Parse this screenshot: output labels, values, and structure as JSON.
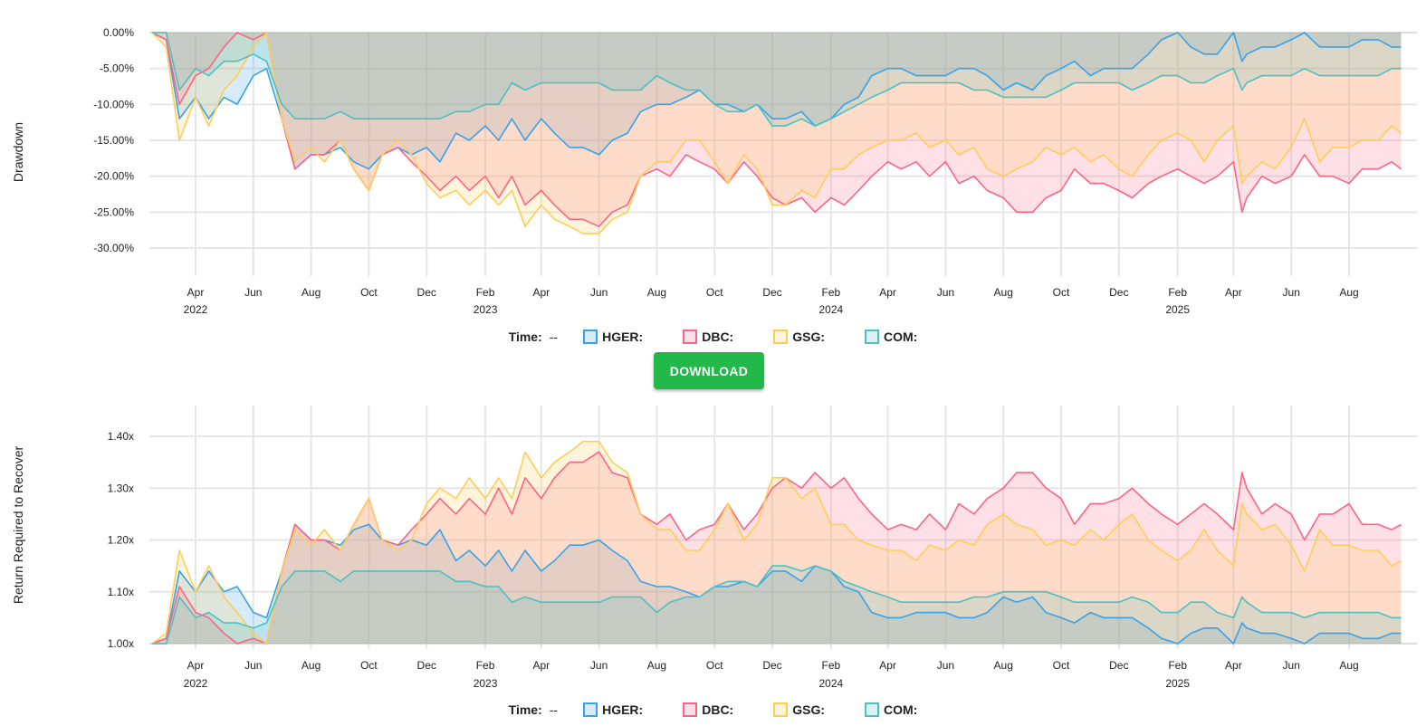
{
  "download_label": "DOWNLOAD",
  "legend": {
    "time_label": "Time:",
    "time_value": "--",
    "items": [
      {
        "label": "HGER:",
        "color": "#36a2eb"
      },
      {
        "label": "DBC:",
        "color": "#ff6384"
      },
      {
        "label": "GSG:",
        "color": "#ffcd56"
      },
      {
        "label": "COM:",
        "color": "#4bc0c0"
      }
    ]
  },
  "chart_data": [
    {
      "type": "area",
      "ylabel": "Drawdown",
      "ylim": [
        -33,
        0
      ],
      "y_ticks": [
        0,
        -5,
        -10,
        -15,
        -20,
        -25,
        -30
      ],
      "y_tick_labels": [
        "0.00%",
        "-5.00%",
        "-10.00%",
        "-15.00%",
        "-20.00%",
        "-25.00%",
        "-30.00%"
      ],
      "grid": true,
      "legend": "bottom",
      "series": [
        {
          "name": "HGER",
          "color": "#36a2eb",
          "values": [
            0,
            -1,
            -12,
            -9,
            -12,
            -9,
            -10,
            -6,
            -5,
            -12,
            -19,
            -17,
            -17,
            -16,
            -18,
            -19,
            -17,
            -16,
            -17,
            -16,
            -18,
            -14,
            -15,
            -13,
            -15,
            -12,
            -15,
            -12,
            -14,
            -16,
            -16,
            -17,
            -15,
            -14,
            -11,
            -10,
            -10,
            -9,
            -8,
            -10,
            -10,
            -11,
            -10,
            -12,
            -12,
            -11,
            -13,
            -12,
            -10,
            -9,
            -6,
            -5,
            -5,
            -6,
            -6,
            -6,
            -5,
            -5,
            -6,
            -8,
            -7,
            -8,
            -6,
            -5,
            -4,
            -6,
            -5,
            -5,
            -5,
            -3,
            -1,
            0,
            -2,
            -3,
            -3,
            0,
            -4,
            -3,
            -2,
            -2,
            -1,
            0,
            -2,
            -2,
            -2,
            -1,
            -1,
            -2,
            -2
          ]
        },
        {
          "name": "DBC",
          "color": "#ff6384",
          "values": [
            0,
            -1,
            -10,
            -6,
            -5,
            -2,
            0,
            -1,
            0,
            -12,
            -19,
            -17,
            -17,
            -15,
            -19,
            -22,
            -17,
            -16,
            -18,
            -20,
            -22,
            -20,
            -22,
            -20,
            -23,
            -20,
            -24,
            -22,
            -24,
            -26,
            -26,
            -27,
            -25,
            -24,
            -20,
            -19,
            -20,
            -17,
            -18,
            -19,
            -21,
            -18,
            -20,
            -23,
            -24,
            -23,
            -25,
            -23,
            -24,
            -22,
            -20,
            -18,
            -19,
            -18,
            -20,
            -18,
            -21,
            -20,
            -22,
            -23,
            -25,
            -25,
            -23,
            -22,
            -19,
            -21,
            -21,
            -22,
            -23,
            -21,
            -20,
            -19,
            -20,
            -21,
            -20,
            -18,
            -25,
            -23,
            -20,
            -21,
            -20,
            -17,
            -20,
            -20,
            -21,
            -19,
            -19,
            -18,
            -19
          ]
        },
        {
          "name": "GSG",
          "color": "#ffcd56",
          "values": [
            0,
            -2,
            -15,
            -9,
            -13,
            -8,
            -6,
            -2,
            0,
            -12,
            -18,
            -16,
            -18,
            -15,
            -19,
            -22,
            -17,
            -15,
            -17,
            -21,
            -23,
            -22,
            -24,
            -22,
            -24,
            -22,
            -27,
            -24,
            -26,
            -27,
            -28,
            -28,
            -26,
            -25,
            -20,
            -18,
            -18,
            -15,
            -15,
            -18,
            -21,
            -17,
            -19,
            -24,
            -24,
            -22,
            -23,
            -19,
            -19,
            -17,
            -16,
            -15,
            -15,
            -14,
            -16,
            -15,
            -17,
            -16,
            -19,
            -20,
            -19,
            -18,
            -16,
            -17,
            -16,
            -18,
            -17,
            -19,
            -20,
            -17,
            -15,
            -14,
            -15,
            -18,
            -15,
            -13,
            -21,
            -20,
            -18,
            -19,
            -16,
            -12,
            -18,
            -16,
            -16,
            -15,
            -15,
            -13,
            -14
          ]
        },
        {
          "name": "COM",
          "color": "#4bc0c0",
          "values": [
            0,
            0,
            -8,
            -5,
            -6,
            -4,
            -4,
            -3,
            -4,
            -10,
            -12,
            -12,
            -12,
            -11,
            -12,
            -12,
            -12,
            -12,
            -12,
            -12,
            -12,
            -11,
            -11,
            -10,
            -10,
            -7,
            -8,
            -7,
            -7,
            -7,
            -7,
            -7,
            -8,
            -8,
            -8,
            -6,
            -7,
            -8,
            -8,
            -10,
            -11,
            -11,
            -10,
            -13,
            -13,
            -12,
            -13,
            -12,
            -11,
            -10,
            -9,
            -8,
            -7,
            -7,
            -7,
            -7,
            -7,
            -8,
            -8,
            -9,
            -9,
            -9,
            -9,
            -8,
            -7,
            -7,
            -7,
            -7,
            -8,
            -7,
            -6,
            -6,
            -7,
            -7,
            -6,
            -5,
            -8,
            -7,
            -6,
            -6,
            -6,
            -5,
            -6,
            -6,
            -6,
            -6,
            -6,
            -5,
            -5
          ]
        }
      ]
    },
    {
      "type": "area",
      "ylabel": "Return Required to Recover",
      "ylim": [
        1.0,
        1.46
      ],
      "y_ticks": [
        1.0,
        1.1,
        1.2,
        1.3,
        1.4
      ],
      "y_tick_labels": [
        "1.00x",
        "1.10x",
        "1.20x",
        "1.30x",
        "1.40x"
      ],
      "grid": true,
      "legend": "bottom",
      "series": [
        {
          "name": "HGER",
          "color": "#36a2eb",
          "values": [
            1.0,
            1.01,
            1.14,
            1.1,
            1.14,
            1.1,
            1.11,
            1.06,
            1.05,
            1.14,
            1.23,
            1.2,
            1.2,
            1.19,
            1.22,
            1.23,
            1.2,
            1.19,
            1.2,
            1.19,
            1.22,
            1.16,
            1.18,
            1.15,
            1.18,
            1.14,
            1.18,
            1.14,
            1.16,
            1.19,
            1.19,
            1.2,
            1.18,
            1.16,
            1.12,
            1.11,
            1.11,
            1.1,
            1.09,
            1.11,
            1.11,
            1.12,
            1.11,
            1.14,
            1.14,
            1.12,
            1.15,
            1.14,
            1.11,
            1.1,
            1.06,
            1.05,
            1.05,
            1.06,
            1.06,
            1.06,
            1.05,
            1.05,
            1.06,
            1.09,
            1.08,
            1.09,
            1.06,
            1.05,
            1.04,
            1.06,
            1.05,
            1.05,
            1.05,
            1.03,
            1.01,
            1.0,
            1.02,
            1.03,
            1.03,
            1.0,
            1.04,
            1.03,
            1.02,
            1.02,
            1.01,
            1.0,
            1.02,
            1.02,
            1.02,
            1.01,
            1.01,
            1.02,
            1.02
          ]
        },
        {
          "name": "DBC",
          "color": "#ff6384",
          "values": [
            1.0,
            1.01,
            1.11,
            1.06,
            1.05,
            1.02,
            1.0,
            1.01,
            1.0,
            1.14,
            1.23,
            1.2,
            1.2,
            1.18,
            1.23,
            1.28,
            1.2,
            1.19,
            1.22,
            1.25,
            1.28,
            1.25,
            1.28,
            1.25,
            1.3,
            1.25,
            1.32,
            1.28,
            1.32,
            1.35,
            1.35,
            1.37,
            1.33,
            1.32,
            1.25,
            1.23,
            1.25,
            1.2,
            1.22,
            1.23,
            1.27,
            1.22,
            1.25,
            1.3,
            1.32,
            1.3,
            1.33,
            1.3,
            1.32,
            1.28,
            1.25,
            1.22,
            1.23,
            1.22,
            1.25,
            1.22,
            1.27,
            1.25,
            1.28,
            1.3,
            1.33,
            1.33,
            1.3,
            1.28,
            1.23,
            1.27,
            1.27,
            1.28,
            1.3,
            1.27,
            1.25,
            1.23,
            1.25,
            1.27,
            1.25,
            1.22,
            1.33,
            1.3,
            1.25,
            1.27,
            1.25,
            1.2,
            1.25,
            1.25,
            1.27,
            1.23,
            1.23,
            1.22,
            1.23
          ]
        },
        {
          "name": "GSG",
          "color": "#ffcd56",
          "values": [
            1.0,
            1.02,
            1.18,
            1.1,
            1.15,
            1.09,
            1.06,
            1.02,
            1.0,
            1.14,
            1.22,
            1.19,
            1.22,
            1.18,
            1.23,
            1.28,
            1.2,
            1.18,
            1.2,
            1.27,
            1.3,
            1.28,
            1.32,
            1.28,
            1.32,
            1.28,
            1.37,
            1.32,
            1.35,
            1.37,
            1.39,
            1.39,
            1.35,
            1.33,
            1.25,
            1.22,
            1.22,
            1.18,
            1.18,
            1.22,
            1.27,
            1.2,
            1.23,
            1.32,
            1.32,
            1.28,
            1.3,
            1.23,
            1.23,
            1.2,
            1.19,
            1.18,
            1.18,
            1.16,
            1.19,
            1.18,
            1.2,
            1.19,
            1.23,
            1.25,
            1.23,
            1.22,
            1.19,
            1.2,
            1.19,
            1.22,
            1.2,
            1.23,
            1.25,
            1.2,
            1.18,
            1.16,
            1.18,
            1.22,
            1.18,
            1.15,
            1.27,
            1.25,
            1.22,
            1.23,
            1.19,
            1.14,
            1.22,
            1.19,
            1.19,
            1.18,
            1.18,
            1.15,
            1.16
          ]
        },
        {
          "name": "COM",
          "color": "#4bc0c0",
          "values": [
            1.0,
            1.0,
            1.09,
            1.05,
            1.06,
            1.04,
            1.04,
            1.03,
            1.04,
            1.11,
            1.14,
            1.14,
            1.14,
            1.12,
            1.14,
            1.14,
            1.14,
            1.14,
            1.14,
            1.14,
            1.14,
            1.12,
            1.12,
            1.11,
            1.11,
            1.08,
            1.09,
            1.08,
            1.08,
            1.08,
            1.08,
            1.08,
            1.09,
            1.09,
            1.09,
            1.06,
            1.08,
            1.09,
            1.09,
            1.11,
            1.12,
            1.12,
            1.11,
            1.15,
            1.15,
            1.14,
            1.15,
            1.14,
            1.12,
            1.11,
            1.1,
            1.09,
            1.08,
            1.08,
            1.08,
            1.08,
            1.08,
            1.09,
            1.09,
            1.1,
            1.1,
            1.1,
            1.1,
            1.09,
            1.08,
            1.08,
            1.08,
            1.08,
            1.09,
            1.08,
            1.06,
            1.06,
            1.08,
            1.08,
            1.06,
            1.05,
            1.09,
            1.08,
            1.06,
            1.06,
            1.06,
            1.05,
            1.06,
            1.06,
            1.06,
            1.06,
            1.06,
            1.05,
            1.05
          ]
        }
      ]
    }
  ],
  "dates": [
    "2022-02-14",
    "2022-03-01",
    "2022-03-15",
    "2022-04-01",
    "2022-04-15",
    "2022-05-01",
    "2022-05-15",
    "2022-06-01",
    "2022-06-15",
    "2022-07-01",
    "2022-07-15",
    "2022-08-01",
    "2022-08-15",
    "2022-09-01",
    "2022-09-15",
    "2022-10-01",
    "2022-10-15",
    "2022-11-01",
    "2022-11-15",
    "2022-12-01",
    "2022-12-15",
    "2023-01-01",
    "2023-01-15",
    "2023-02-01",
    "2023-02-15",
    "2023-03-01",
    "2023-03-15",
    "2023-04-01",
    "2023-04-15",
    "2023-05-01",
    "2023-05-15",
    "2023-06-01",
    "2023-06-15",
    "2023-07-01",
    "2023-07-15",
    "2023-08-01",
    "2023-08-15",
    "2023-09-01",
    "2023-09-15",
    "2023-10-01",
    "2023-10-15",
    "2023-11-01",
    "2023-11-15",
    "2023-12-01",
    "2023-12-15",
    "2024-01-01",
    "2024-01-15",
    "2024-02-01",
    "2024-02-15",
    "2024-03-01",
    "2024-03-15",
    "2024-04-01",
    "2024-04-15",
    "2024-05-01",
    "2024-05-15",
    "2024-06-01",
    "2024-06-15",
    "2024-07-01",
    "2024-07-15",
    "2024-08-01",
    "2024-08-15",
    "2024-09-01",
    "2024-09-15",
    "2024-10-01",
    "2024-10-15",
    "2024-11-01",
    "2024-11-15",
    "2024-12-01",
    "2024-12-15",
    "2025-01-01",
    "2025-01-15",
    "2025-02-01",
    "2025-02-15",
    "2025-03-01",
    "2025-03-15",
    "2025-04-01",
    "2025-04-10",
    "2025-04-15",
    "2025-05-01",
    "2025-05-15",
    "2025-06-01",
    "2025-06-15",
    "2025-07-01",
    "2025-07-15",
    "2025-08-01",
    "2025-08-15",
    "2025-09-01",
    "2025-09-15",
    "2025-09-25"
  ],
  "x_ticks": [
    {
      "date": "2022-04-01",
      "label": "Apr",
      "year": "2022"
    },
    {
      "date": "2022-06-01",
      "label": "Jun"
    },
    {
      "date": "2022-08-01",
      "label": "Aug"
    },
    {
      "date": "2022-10-01",
      "label": "Oct"
    },
    {
      "date": "2022-12-01",
      "label": "Dec"
    },
    {
      "date": "2023-02-01",
      "label": "Feb",
      "year": "2023"
    },
    {
      "date": "2023-04-01",
      "label": "Apr"
    },
    {
      "date": "2023-06-01",
      "label": "Jun"
    },
    {
      "date": "2023-08-01",
      "label": "Aug"
    },
    {
      "date": "2023-10-01",
      "label": "Oct"
    },
    {
      "date": "2023-12-01",
      "label": "Dec"
    },
    {
      "date": "2024-02-01",
      "label": "Feb",
      "year": "2024"
    },
    {
      "date": "2024-04-01",
      "label": "Apr"
    },
    {
      "date": "2024-06-01",
      "label": "Jun"
    },
    {
      "date": "2024-08-01",
      "label": "Aug"
    },
    {
      "date": "2024-10-01",
      "label": "Oct"
    },
    {
      "date": "2024-12-01",
      "label": "Dec"
    },
    {
      "date": "2025-02-01",
      "label": "Feb",
      "year": "2025"
    },
    {
      "date": "2025-04-01",
      "label": "Apr"
    },
    {
      "date": "2025-06-01",
      "label": "Jun"
    },
    {
      "date": "2025-08-01",
      "label": "Aug"
    }
  ]
}
